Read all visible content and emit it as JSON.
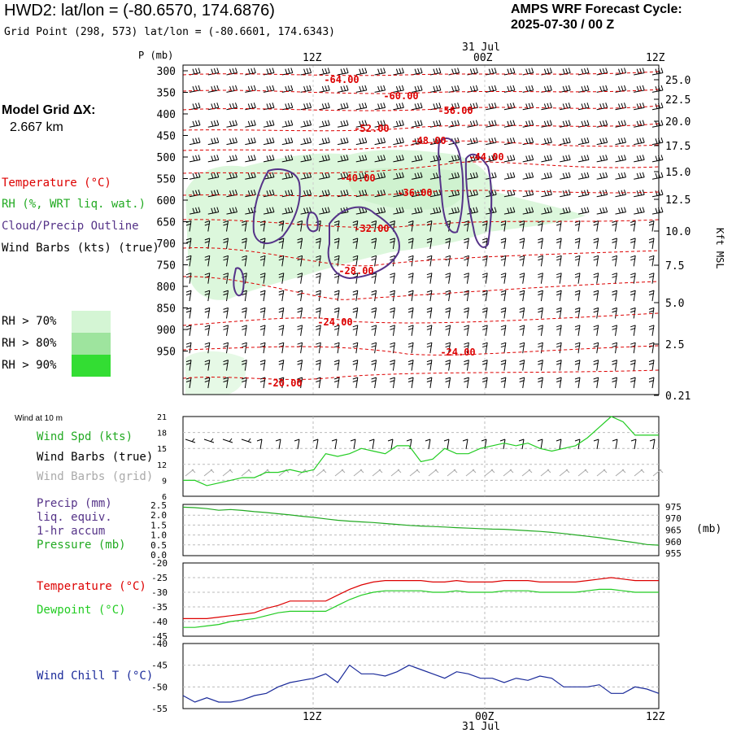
{
  "header": {
    "station_title": "HWD2:  lat/lon = (-80.6570, 174.6876)",
    "grid_point": "Grid Point (298, 573) lat/lon = (-80.6601, 174.6343)",
    "forecast_label": "AMPS WRF Forecast Cycle:",
    "forecast_cycle": "2025-07-30 / 00  Z"
  },
  "model_grid": {
    "label": "Model Grid ΔX:",
    "value": "2.667 km"
  },
  "left_legend": {
    "temperature": "Temperature (°C)",
    "rh": "RH (%, WRT liq. wat.)",
    "cloud": "Cloud/Precip Outline",
    "wind_barbs": "Wind Barbs (kts) (true)",
    "rh_bins": [
      {
        "label": "RH > 70%",
        "color": "#d4f5d4"
      },
      {
        "label": "RH > 80%",
        "color": "#9ee49e"
      },
      {
        "label": "RH > 90%",
        "color": "#33dd33"
      }
    ]
  },
  "colors": {
    "temperature": "#dd0000",
    "rh": "#22aa22",
    "cloud": "#553388",
    "dewpoint": "#22cc22",
    "windchill": "#1a2a9a",
    "grid": "#aaaaaa",
    "barbs": "#000000",
    "barbs_grid": "#aaaaaa",
    "wind_speed": "#22cc22"
  },
  "time_axis": {
    "top_labels": [
      "12Z",
      "00Z",
      "12Z"
    ],
    "date_label": "31 Jul",
    "bottom_labels": [
      "12Z",
      "00Z",
      "12Z"
    ]
  },
  "chart_data": [
    {
      "type": "heatmap",
      "panel": "cross-section",
      "ylabel_left": "P (mb)",
      "ylabel_right": "Kft MSL",
      "pressure_ticks": [
        "300",
        "350",
        "400",
        "450",
        "500",
        "550",
        "600",
        "650",
        "700",
        "750",
        "800",
        "850",
        "900",
        "950"
      ],
      "height_ticks": [
        "25.0",
        "22.5",
        "20.0",
        "17.5",
        "15.0",
        "12.5",
        "10.0",
        "7.5",
        "5.0",
        "2.5",
        "0.21"
      ],
      "temperature_contour_labels": [
        "-64.00",
        "-60.00",
        "-56.00",
        "-52.00",
        "-48.00",
        "-44.00",
        "-40.00",
        "-36.00",
        "-32.00",
        "-28.00",
        "-24.00",
        "-24.00",
        "-20.00"
      ]
    },
    {
      "type": "line",
      "panel": "wind",
      "title_small": "Wind at 10 m",
      "legend": [
        "Wind Spd (kts)",
        "Wind Barbs (true)",
        "Wind Barbs (grid)"
      ],
      "yticks": [
        "21",
        "18",
        "15",
        "12",
        "9",
        "6"
      ],
      "ylim": [
        6,
        21
      ],
      "series": [
        {
          "name": "Wind Spd (kts)",
          "values": [
            9,
            9,
            8,
            8.5,
            9,
            9.5,
            9.5,
            10.5,
            10.5,
            11,
            10.5,
            11,
            14,
            13.5,
            14,
            15,
            14.5,
            14,
            15.5,
            15.5,
            12.5,
            13,
            15,
            14,
            14,
            15,
            15.5,
            16,
            15.5,
            16,
            15,
            14.5,
            15,
            15.5,
            17,
            19,
            21,
            20,
            17.5,
            17.5,
            17.5
          ]
        }
      ]
    },
    {
      "type": "line",
      "panel": "precip-pressure",
      "legend": [
        "Precip (mm)",
        "liq. equiv.",
        "1-hr accum",
        "Pressure (mb)"
      ],
      "yticks_left": [
        "2.5",
        "2.0",
        "1.5",
        "1.0",
        "0.5",
        "0.0"
      ],
      "yticks_right": [
        "975",
        "970",
        "965",
        "960",
        "955"
      ],
      "ylabel_right": "(mb)",
      "ylim_right": [
        954,
        976
      ],
      "series": [
        {
          "name": "Pressure (mb)",
          "values": [
            974.8,
            974.6,
            974.2,
            973.5,
            973.8,
            973.4,
            972.9,
            972.5,
            972.0,
            971.5,
            970.9,
            970.4,
            969.8,
            969.2,
            968.8,
            968.5,
            968.2,
            967.8,
            967.4,
            967.0,
            966.7,
            966.5,
            966.3,
            966.0,
            965.8,
            965.6,
            965.4,
            965.3,
            965.0,
            964.7,
            964.4,
            964.0,
            963.5,
            962.9,
            962.3,
            961.7,
            961.0,
            960.3,
            959.6,
            958.8,
            958.5
          ]
        }
      ]
    },
    {
      "type": "line",
      "panel": "temperature",
      "legend": [
        "Temperature (°C)",
        "Dewpoint (°C)"
      ],
      "yticks": [
        "-20",
        "-25",
        "-30",
        "-35",
        "-40",
        "-45"
      ],
      "ylim": [
        -45,
        -20
      ],
      "series": [
        {
          "name": "Temperature (°C)",
          "values": [
            -39,
            -39,
            -39,
            -38.5,
            -38,
            -37.5,
            -37,
            -35.5,
            -34.5,
            -33,
            -33,
            -33,
            -33,
            -31,
            -29,
            -27.5,
            -26.5,
            -26,
            -26,
            -26,
            -26,
            -26.5,
            -26.5,
            -26,
            -26.5,
            -26.5,
            -26.5,
            -26,
            -26,
            -26,
            -26.5,
            -26.5,
            -26.5,
            -26.5,
            -26,
            -25.5,
            -25,
            -25.5,
            -26,
            -26,
            -26
          ]
        },
        {
          "name": "Dewpoint (°C)",
          "values": [
            -42,
            -42,
            -41.5,
            -41,
            -40,
            -39.5,
            -39,
            -38,
            -37,
            -36.5,
            -36.5,
            -36.5,
            -36.5,
            -34.5,
            -32.5,
            -31,
            -30,
            -29.5,
            -29.5,
            -29.5,
            -29.5,
            -30,
            -30,
            -29.5,
            -30,
            -30,
            -30,
            -29.5,
            -29.5,
            -29.5,
            -30,
            -30,
            -30,
            -30,
            -29.5,
            -29,
            -29,
            -29.5,
            -30,
            -30,
            -30
          ]
        }
      ]
    },
    {
      "type": "line",
      "panel": "windchill",
      "legend": [
        "Wind Chill T (°C)"
      ],
      "yticks": [
        "-40",
        "-45",
        "-50",
        "-55"
      ],
      "ylim": [
        -55,
        -40
      ],
      "series": [
        {
          "name": "Wind Chill T (°C)",
          "values": [
            -52,
            -53.5,
            -52.5,
            -53.5,
            -53.5,
            -53,
            -52,
            -51.5,
            -50,
            -49,
            -48.5,
            -48,
            -47,
            -49,
            -45,
            -47,
            -47,
            -47.5,
            -46.5,
            -45,
            -46,
            -47,
            -48,
            -46.5,
            -47,
            -48,
            -48,
            -49,
            -48,
            -48.5,
            -47.5,
            -48,
            -50,
            -50,
            -50,
            -49.5,
            -51.5,
            -51.5,
            -50,
            -50.5,
            -51.5
          ]
        }
      ]
    }
  ]
}
